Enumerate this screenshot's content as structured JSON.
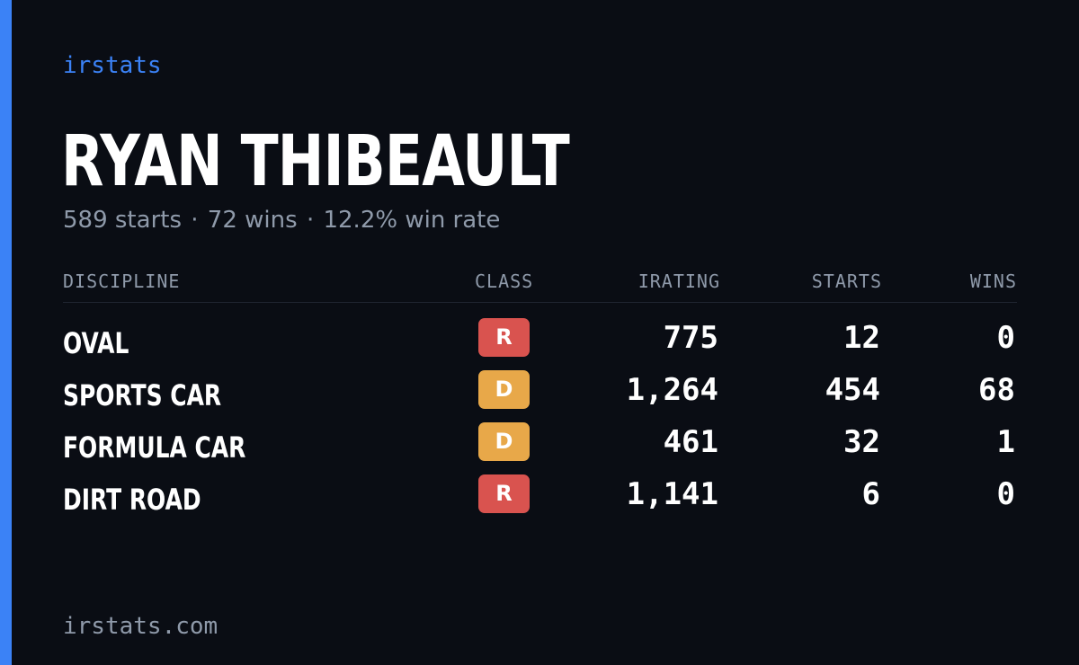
{
  "brand": "irstats",
  "driver": {
    "name": "RYAN THIBEAULT",
    "starts": "589 starts",
    "wins": "72 wins",
    "win_rate": "12.2% win rate",
    "separator": "·"
  },
  "table": {
    "headers": {
      "discipline": "DISCIPLINE",
      "class": "CLASS",
      "irating": "IRATING",
      "starts": "STARTS",
      "wins": "WINS"
    },
    "rows": [
      {
        "discipline": "OVAL",
        "class": "R",
        "class_color": "#d9534f",
        "irating": "775",
        "starts": "12",
        "wins": "0"
      },
      {
        "discipline": "SPORTS CAR",
        "class": "D",
        "class_color": "#e8a849",
        "irating": "1,264",
        "starts": "454",
        "wins": "68"
      },
      {
        "discipline": "FORMULA CAR",
        "class": "D",
        "class_color": "#e8a849",
        "irating": "461",
        "starts": "32",
        "wins": "1"
      },
      {
        "discipline": "DIRT ROAD",
        "class": "R",
        "class_color": "#d9534f",
        "irating": "1,141",
        "starts": "6",
        "wins": "0"
      }
    ]
  },
  "footer": "irstats.com",
  "colors": {
    "accent": "#3b82f6",
    "background": "#0a0d14",
    "muted_text": "#8f9aaa"
  }
}
